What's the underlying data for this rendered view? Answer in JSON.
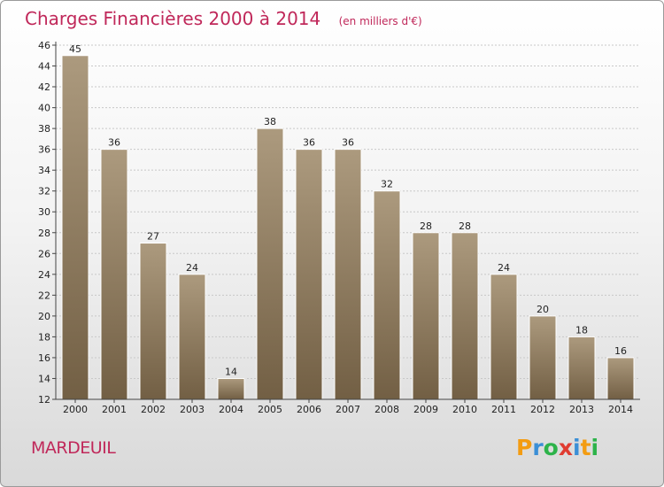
{
  "header": {
    "title": "Charges Financières 2000 à 2014",
    "subtitle": "(en milliers d'€)"
  },
  "footer": {
    "place": "MARDEUIL",
    "logo": {
      "letters": [
        "P",
        "r",
        "o",
        "x",
        "i",
        "t",
        "i"
      ],
      "colors": [
        "#f39c12",
        "#3b8fd6",
        "#2db34a",
        "#e03c31",
        "#3b8fd6",
        "#f39c12",
        "#2db34a"
      ]
    }
  },
  "colors": {
    "bar_top": "#ac9a7e",
    "bar_bottom": "#725f44",
    "grid": "#c8c8c8",
    "axis": "#444444"
  },
  "chart_data": {
    "type": "bar",
    "title": "Charges Financières 2000 à 2014",
    "subtitle": "(en milliers d'€)",
    "xlabel": "",
    "ylabel": "",
    "categories": [
      "2000",
      "2001",
      "2002",
      "2003",
      "2004",
      "2005",
      "2006",
      "2007",
      "2008",
      "2009",
      "2010",
      "2011",
      "2012",
      "2013",
      "2014"
    ],
    "values": [
      45,
      36,
      27,
      24,
      14,
      38,
      36,
      36,
      32,
      28,
      28,
      24,
      20,
      18,
      16
    ],
    "data_labels": [
      "45",
      "36",
      "27",
      "24",
      "14",
      "38",
      "36",
      "36",
      "32",
      "28",
      "28",
      "24",
      "20",
      "18",
      "16"
    ],
    "ylim": [
      12,
      46
    ],
    "yticks": [
      12,
      14,
      16,
      18,
      20,
      22,
      24,
      26,
      28,
      30,
      32,
      34,
      36,
      38,
      40,
      42,
      44,
      46
    ],
    "grid": true,
    "legend": "none"
  }
}
